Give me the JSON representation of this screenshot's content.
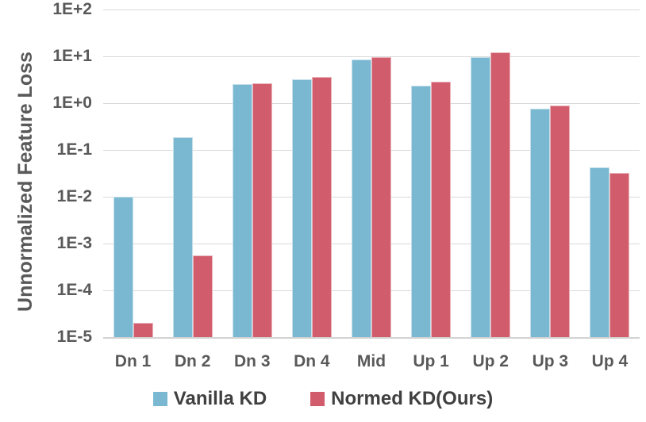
{
  "chart_data": {
    "type": "bar",
    "title": "",
    "ylabel": "Unnormalized Feature Loss",
    "xlabel": "",
    "y_scale": "log",
    "ylim": [
      1e-05,
      100
    ],
    "y_ticks": [
      "1E+2",
      "1E+1",
      "1E+0",
      "1E-1",
      "1E-2",
      "1E-3",
      "1E-4",
      "1E-5"
    ],
    "grid": true,
    "legend_position": "bottom",
    "categories": [
      "Dn 1",
      "Dn 2",
      "Dn 3",
      "Dn 4",
      "Mid",
      "Up 1",
      "Up 2",
      "Up 3",
      "Up 4"
    ],
    "series": [
      {
        "name": "Vanilla KD",
        "color": "#7ab8d2",
        "values": [
          0.01,
          0.19,
          2.6,
          3.2,
          8.5,
          2.4,
          9.8,
          0.77,
          0.042
        ]
      },
      {
        "name": "Normed KD(Ours)",
        "color": "#d15c6c",
        "values": [
          2e-05,
          0.00055,
          2.7,
          3.6,
          9.5,
          2.9,
          12,
          0.9,
          0.032
        ]
      }
    ]
  },
  "style": {
    "background": "#ffffff",
    "gridline_color": "#d9d9d9",
    "axis_line_color": "#d3d3d3",
    "tick_label_color": "#595959",
    "category_label_color": "#595959",
    "legend_text_color": "#404040"
  }
}
